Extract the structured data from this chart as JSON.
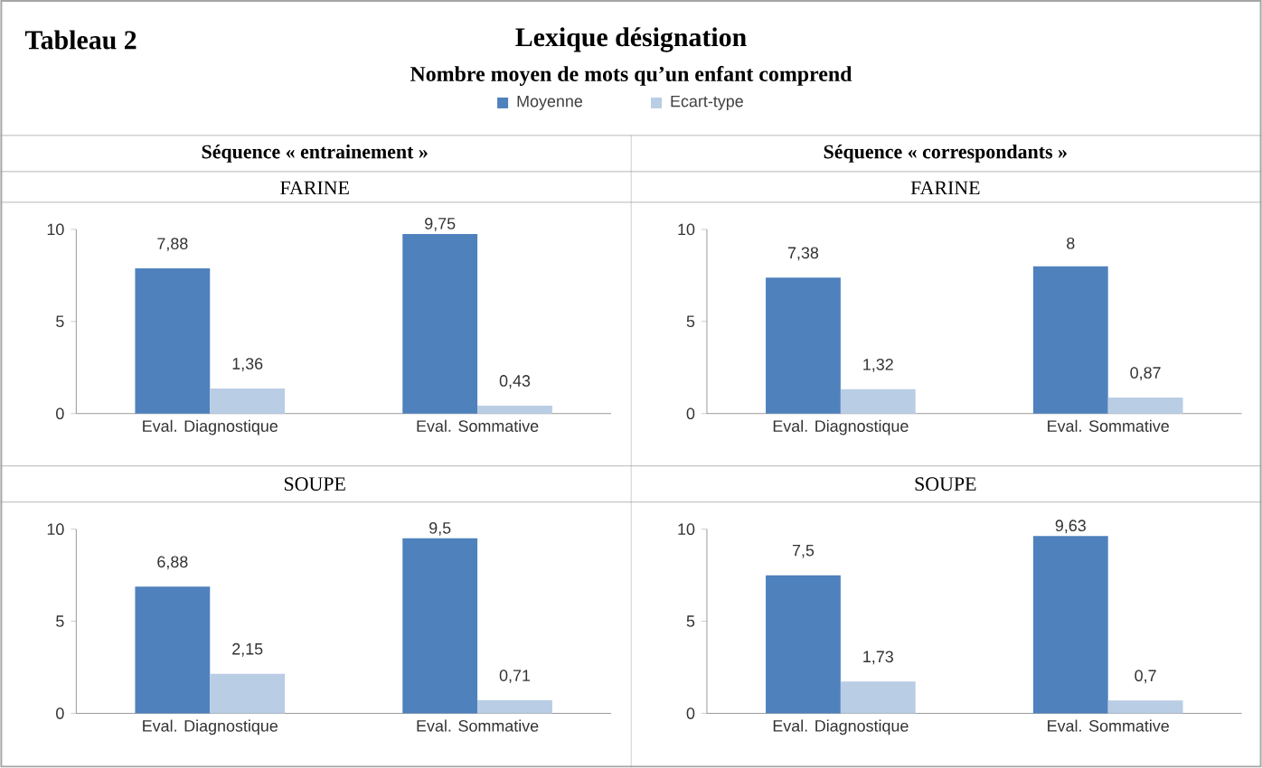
{
  "chart_data": [
    {
      "type": "bar",
      "title": "FARINE",
      "annotations": [
        "Tableau 2",
        "Lexique désignation",
        "Nombre moyen de mots qu’un enfant comprend",
        "Séquence « entrainement »"
      ],
      "categories": [
        "Eval. Diagnostique",
        "Eval. Sommative"
      ],
      "legend": "top",
      "series": [
        {
          "name": "Moyenne",
          "color": "#4f81bd",
          "values": [
            7.88,
            9.75
          ],
          "value_labels": [
            "7,88",
            "9,75"
          ]
        },
        {
          "name": "Ecart-type",
          "color": "#b9cde5",
          "values": [
            1.36,
            0.43
          ],
          "value_labels": [
            "1,36",
            "0,43"
          ]
        }
      ],
      "ylim": [
        0,
        10
      ],
      "yticks": [
        0,
        5,
        10
      ]
    },
    {
      "type": "bar",
      "title": "FARINE",
      "annotations": [
        "Séquence « correspondants »"
      ],
      "categories": [
        "Eval. Diagnostique",
        "Eval. Sommative"
      ],
      "series": [
        {
          "color": "#4f81bd",
          "values": [
            7.38,
            8
          ],
          "value_labels": [
            "7,38",
            "8"
          ]
        },
        {
          "color": "#b9cde5",
          "values": [
            1.32,
            0.87
          ],
          "value_labels": [
            "1,32",
            "0,87"
          ]
        }
      ],
      "ylim": [
        0,
        10
      ],
      "yticks": [
        0,
        5,
        10
      ]
    },
    {
      "type": "bar",
      "title": "SOUPE",
      "categories": [
        "Eval. Diagnostique",
        "Eval. Sommative"
      ],
      "series": [
        {
          "color": "#4f81bd",
          "values": [
            6.88,
            9.5
          ],
          "value_labels": [
            "6,88",
            "9,5"
          ]
        },
        {
          "color": "#b9cde5",
          "values": [
            2.15,
            0.71
          ],
          "value_labels": [
            "2,15",
            "0,71"
          ]
        }
      ],
      "ylim": [
        0,
        10
      ],
      "yticks": [
        0,
        5,
        10
      ]
    },
    {
      "type": "bar",
      "title": "SOUPE",
      "categories": [
        "Eval. Diagnostique",
        "Eval. Sommative"
      ],
      "series": [
        {
          "color": "#4f81bd",
          "values": [
            7.5,
            9.63
          ],
          "value_labels": [
            "7,5",
            "9,63"
          ]
        },
        {
          "color": "#b9cde5",
          "values": [
            1.73,
            0.7
          ],
          "value_labels": [
            "1,73",
            "0,7"
          ]
        }
      ],
      "ylim": [
        0,
        10
      ],
      "yticks": [
        0,
        5,
        10
      ]
    }
  ]
}
